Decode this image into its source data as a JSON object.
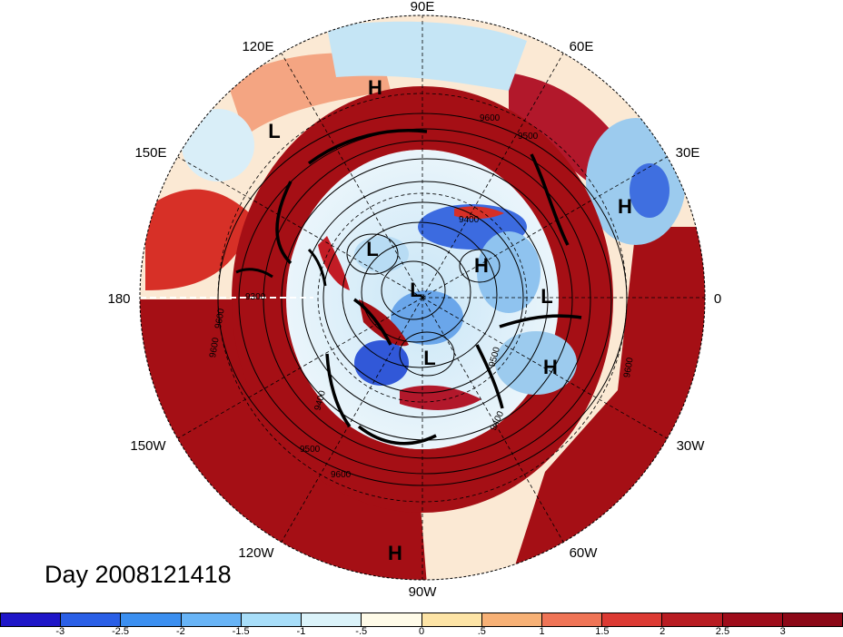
{
  "map": {
    "projection": "north-polar-stereographic",
    "field": "anomaly shading with 250 hPa geopotential height contours",
    "longitude_labels": [
      {
        "text": "90E",
        "lon": 90
      },
      {
        "text": "60E",
        "lon": 60
      },
      {
        "text": "30E",
        "lon": 30
      },
      {
        "text": "0",
        "lon": 0
      },
      {
        "text": "30W",
        "lon": -30
      },
      {
        "text": "60W",
        "lon": -60
      },
      {
        "text": "90W",
        "lon": -90
      },
      {
        "text": "120W",
        "lon": -120
      },
      {
        "text": "150W",
        "lon": -150
      },
      {
        "text": "180",
        "lon": 180
      },
      {
        "text": "150E",
        "lon": 150
      },
      {
        "text": "120E",
        "lon": 120
      }
    ],
    "pressure_centers": [
      {
        "label": "H",
        "id": "h-north"
      },
      {
        "label": "L",
        "id": "l-upper-left"
      },
      {
        "label": "H",
        "id": "h-right"
      },
      {
        "label": "L",
        "id": "l-center-left"
      },
      {
        "label": "H",
        "id": "h-center"
      },
      {
        "label": "L",
        "id": "l-center"
      },
      {
        "label": "L",
        "id": "l-right"
      },
      {
        "label": "L",
        "id": "l-lower-center"
      },
      {
        "label": "H",
        "id": "h-lower-right"
      },
      {
        "label": "H",
        "id": "h-south"
      }
    ],
    "contour_labels": [
      "9600",
      "9500",
      "9400",
      "9300",
      "9600",
      "9600",
      "9400",
      "9500",
      "9600",
      "9500",
      "9400",
      "9600"
    ],
    "colors": {
      "deep_red": "#a50f15",
      "deep_blue": "#2c4fd6"
    }
  },
  "title": {
    "day_label": "Day 2008121418"
  },
  "colorbar": {
    "colors": [
      "#1f16c8",
      "#2a5fe6",
      "#3b8ff0",
      "#68b4f6",
      "#a8def9",
      "#dbf3fa",
      "#fffbe8",
      "#fde4a6",
      "#f7b176",
      "#ef7456",
      "#dc3a33",
      "#b81c22",
      "#9e0c1a",
      "#8c0817"
    ],
    "tick_labels": [
      "-3",
      "-2.5",
      "-2",
      "-1.5",
      "-1",
      "-.5",
      "0",
      ".5",
      "1",
      "1.5",
      "2",
      "2.5",
      "3"
    ]
  }
}
